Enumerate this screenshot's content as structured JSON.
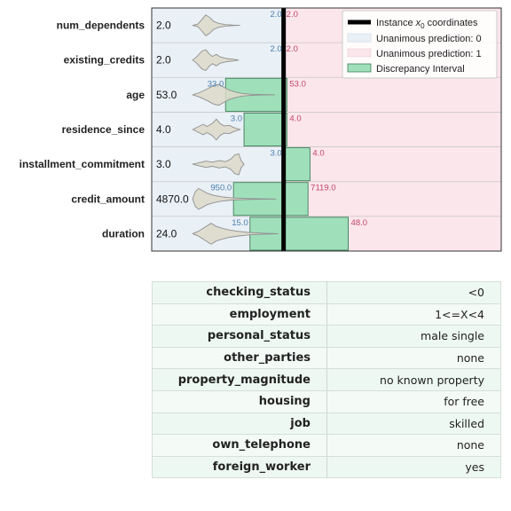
{
  "chart_data": {
    "type": "violin",
    "instance_line": 2.0,
    "legend": {
      "placement": "top-right",
      "instance_prefix": "Instance ",
      "instance_var": "x",
      "instance_sub": "0",
      "instance_suffix": " coordinates",
      "unanimous_0": "Unanimous prediction: 0",
      "unanimous_1": "Unanimous prediction: 1",
      "discrepancy": "Discrepancy Interval"
    },
    "colors": {
      "region_0": "#e9f0f6",
      "region_1": "#fbe6ec",
      "interval": "#9fe0bb",
      "interval_edge": "#3f7d5a",
      "violin": "#ddd9c9",
      "instance_line": "#000000"
    },
    "features": [
      {
        "name": "num_dependents",
        "value": "2.0",
        "lo": "2.0",
        "hi": "2.0",
        "lo_num": 2.0,
        "hi_num": 2.0,
        "violin": [
          [
            0.0,
            0
          ],
          [
            0.08,
            0.12
          ],
          [
            0.14,
            0.55
          ],
          [
            0.2,
            1.0
          ],
          [
            0.26,
            0.75
          ],
          [
            0.32,
            0.38
          ],
          [
            0.4,
            0.18
          ],
          [
            0.5,
            0.07
          ],
          [
            0.62,
            0.02
          ],
          [
            0.72,
            0
          ]
        ]
      },
      {
        "name": "existing_credits",
        "value": "2.0",
        "lo": "2.0",
        "hi": "2.0",
        "lo_num": 2.0,
        "hi_num": 2.0,
        "violin": [
          [
            0.0,
            0
          ],
          [
            0.06,
            0.3
          ],
          [
            0.14,
            0.85
          ],
          [
            0.2,
            1.0
          ],
          [
            0.25,
            0.6
          ],
          [
            0.3,
            0.35
          ],
          [
            0.36,
            0.55
          ],
          [
            0.42,
            0.3
          ],
          [
            0.52,
            0.15
          ],
          [
            0.62,
            0.08
          ],
          [
            0.7,
            0
          ]
        ]
      },
      {
        "name": "age",
        "value": "53.0",
        "lo": "33.0",
        "hi": "53.0",
        "lo_num": 1.12,
        "hi_num": 2.05,
        "violin": [
          [
            0.0,
            0
          ],
          [
            0.1,
            0.2
          ],
          [
            0.22,
            0.55
          ],
          [
            0.32,
            0.9
          ],
          [
            0.4,
            1.0
          ],
          [
            0.48,
            0.7
          ],
          [
            0.56,
            0.45
          ],
          [
            0.66,
            0.25
          ],
          [
            0.76,
            0.12
          ],
          [
            0.9,
            0.05
          ],
          [
            1.05,
            0.02
          ],
          [
            1.25,
            0
          ]
        ]
      },
      {
        "name": "residence_since",
        "value": "4.0",
        "lo": "3.0",
        "hi": "4.0",
        "lo_num": 1.4,
        "hi_num": 2.05,
        "violin": [
          [
            0.0,
            0
          ],
          [
            0.08,
            0.25
          ],
          [
            0.16,
            0.5
          ],
          [
            0.22,
            0.3
          ],
          [
            0.3,
            0.6
          ],
          [
            0.36,
            1.0
          ],
          [
            0.42,
            0.55
          ],
          [
            0.48,
            0.35
          ],
          [
            0.56,
            0.4
          ],
          [
            0.62,
            0.2
          ],
          [
            0.72,
            0
          ]
        ]
      },
      {
        "name": "installment_commitment",
        "value": "3.0",
        "lo": "3.0",
        "hi": "4.0",
        "lo_num": 2.0,
        "hi_num": 2.4,
        "violin": [
          [
            0.0,
            0
          ],
          [
            0.1,
            0.15
          ],
          [
            0.2,
            0.3
          ],
          [
            0.3,
            0.2
          ],
          [
            0.4,
            0.35
          ],
          [
            0.5,
            0.25
          ],
          [
            0.58,
            0.5
          ],
          [
            0.64,
            0.9
          ],
          [
            0.7,
            1.0
          ],
          [
            0.74,
            0.3
          ],
          [
            0.78,
            0
          ]
        ]
      },
      {
        "name": "credit_amount",
        "value": "4870.0",
        "lo": "950.0",
        "hi": "7119.0",
        "lo_num": 1.24,
        "hi_num": 2.37,
        "violin": [
          [
            0.0,
            0
          ],
          [
            0.04,
            0.7
          ],
          [
            0.09,
            1.0
          ],
          [
            0.15,
            0.8
          ],
          [
            0.22,
            0.55
          ],
          [
            0.32,
            0.35
          ],
          [
            0.45,
            0.2
          ],
          [
            0.6,
            0.1
          ],
          [
            0.8,
            0.05
          ],
          [
            1.05,
            0.02
          ],
          [
            1.27,
            0
          ]
        ]
      },
      {
        "name": "duration",
        "value": "24.0",
        "lo": "15.0",
        "hi": "48.0",
        "lo_num": 1.49,
        "hi_num": 2.98,
        "violin": [
          [
            0.0,
            0
          ],
          [
            0.08,
            0.2
          ],
          [
            0.18,
            0.6
          ],
          [
            0.28,
            1.0
          ],
          [
            0.36,
            0.7
          ],
          [
            0.46,
            0.5
          ],
          [
            0.56,
            0.35
          ],
          [
            0.7,
            0.22
          ],
          [
            0.85,
            0.12
          ],
          [
            1.05,
            0.05
          ],
          [
            1.3,
            0
          ]
        ]
      }
    ]
  },
  "table": {
    "rows": [
      {
        "key": "checking_status",
        "value": "<0"
      },
      {
        "key": "employment",
        "value": "1<=X<4"
      },
      {
        "key": "personal_status",
        "value": "male single"
      },
      {
        "key": "other_parties",
        "value": "none"
      },
      {
        "key": "property_magnitude",
        "value": "no known property"
      },
      {
        "key": "housing",
        "value": "for free"
      },
      {
        "key": "job",
        "value": "skilled"
      },
      {
        "key": "own_telephone",
        "value": "none"
      },
      {
        "key": "foreign_worker",
        "value": "yes"
      }
    ]
  }
}
